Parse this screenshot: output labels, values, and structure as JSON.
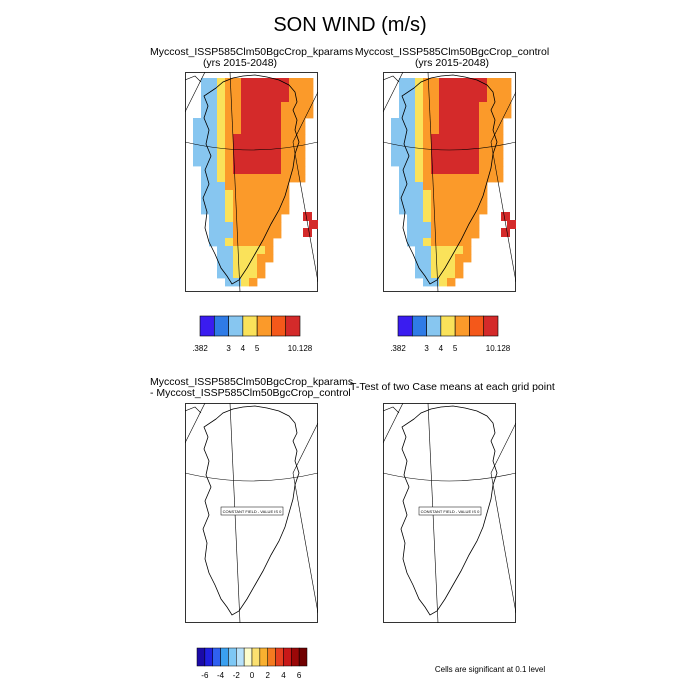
{
  "title": "SON WIND (m/s)",
  "panels": [
    {
      "title_line1": "Myccost_ISSP585Clm50BgcCrop_kparams",
      "title_line2": "(yrs 2015-2048)"
    },
    {
      "title_line1": "Myccost_ISSP585Clm50BgcCrop_control",
      "title_line2": "(yrs 2015-2048)"
    },
    {
      "title_line1": "Myccost_ISSP585Clm50BgcCrop_kparams",
      "title_line2": "- Myccost_ISSP585Clm50BgcCrop_control"
    },
    {
      "title_line1": "T-Test of two Case means at each grid point",
      "title_line2": ""
    }
  ],
  "constant_field_label": "CONSTANT FIELD - VALUE IS 0",
  "colorbar_top": {
    "colors": [
      "#3a1cf0",
      "#2f7be6",
      "#87c6f0",
      "#fae25a",
      "#fb9a2a",
      "#f4581a",
      "#d42a2a"
    ],
    "labels": [
      ".382",
      "3",
      "4",
      "5",
      "10.128"
    ]
  },
  "colorbar_diff": {
    "colors": [
      "#1a0aa8",
      "#2020e0",
      "#2f60f0",
      "#3aa0f0",
      "#7ec8f5",
      "#b8e2fa",
      "#fdfdcc",
      "#fbe070",
      "#f9b030",
      "#f47a20",
      "#e64020",
      "#c81818",
      "#9a0808",
      "#700000"
    ],
    "labels": [
      "-6",
      "-4",
      "-2",
      "0",
      "2",
      "4",
      "6"
    ]
  },
  "significance_note": "Cells are significant at 0.1 level"
}
